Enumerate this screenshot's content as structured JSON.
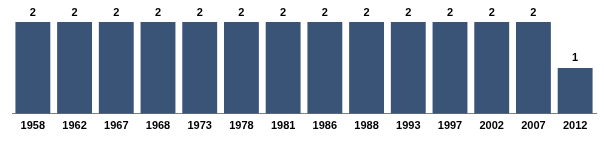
{
  "chart_data": {
    "type": "bar",
    "categories": [
      "1958",
      "1962",
      "1967",
      "1968",
      "1973",
      "1978",
      "1981",
      "1986",
      "1988",
      "1993",
      "1997",
      "2002",
      "2007",
      "2012"
    ],
    "values": [
      2,
      2,
      2,
      2,
      2,
      2,
      2,
      2,
      2,
      2,
      2,
      2,
      2,
      1
    ],
    "color": "#3a5478",
    "ylim": [
      0,
      2
    ],
    "grid": false,
    "data_labels": true,
    "tick_labels": "x"
  }
}
